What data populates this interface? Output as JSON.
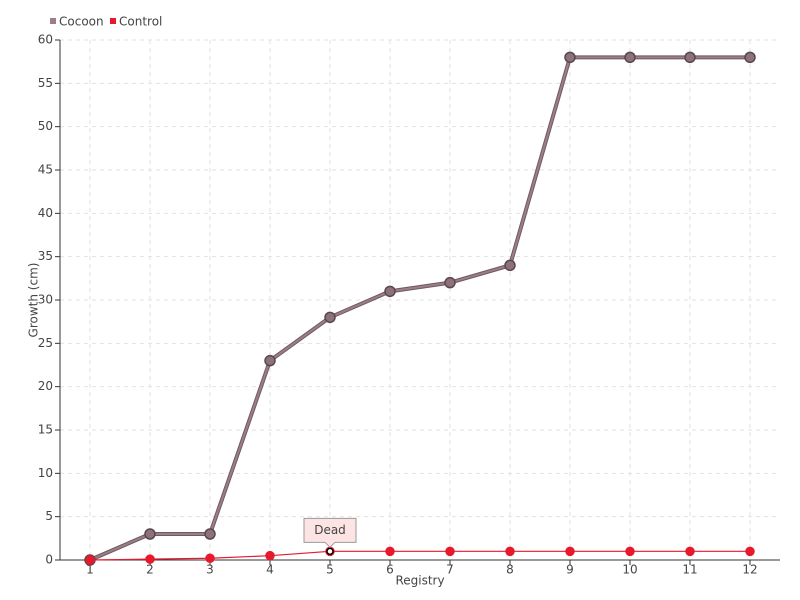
{
  "chart_data": {
    "type": "line",
    "x_label": "Registry",
    "y_label": "Growth (cm)",
    "x": [
      1,
      2,
      3,
      4,
      5,
      6,
      7,
      8,
      9,
      10,
      11,
      12
    ],
    "series": [
      {
        "name": "Cocoon",
        "color": "#9c7f86",
        "values": [
          0,
          3,
          3,
          23,
          28,
          31,
          32,
          34,
          58,
          58,
          58,
          58
        ]
      },
      {
        "name": "Control",
        "color": "#e8192c",
        "values": [
          0,
          0.1,
          0.2,
          0.5,
          1,
          1,
          1,
          1,
          1,
          1,
          1,
          1
        ]
      }
    ],
    "xlim": [
      0.5,
      12.5
    ],
    "xticks": [
      1,
      2,
      3,
      4,
      5,
      6,
      7,
      8,
      9,
      10,
      11,
      12
    ],
    "ylim": [
      0,
      60
    ],
    "yticks": [
      0,
      5,
      10,
      15,
      20,
      25,
      30,
      35,
      40,
      45,
      50,
      55,
      60
    ],
    "grid": true,
    "legend": "top-left",
    "annotations": [
      {
        "text": "Dead",
        "x": 5,
        "y": 1
      }
    ]
  }
}
